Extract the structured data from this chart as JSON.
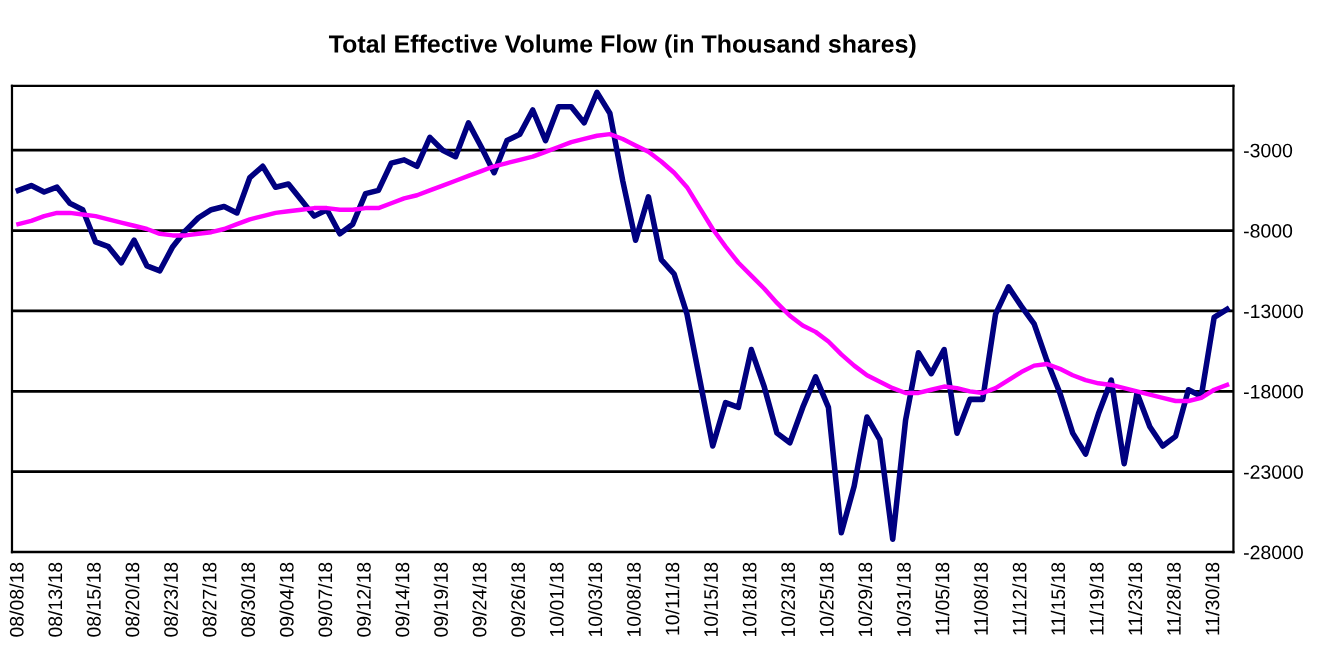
{
  "chart_data": {
    "type": "line",
    "title": "Total Effective Volume Flow (in Thousand shares)",
    "categories": [
      "08/08/18",
      null,
      null,
      "08/13/18",
      null,
      null,
      "08/15/18",
      null,
      null,
      "08/20/18",
      null,
      null,
      "08/23/18",
      null,
      null,
      "08/27/18",
      null,
      null,
      "08/30/18",
      null,
      null,
      "09/04/18",
      null,
      null,
      "09/07/18",
      null,
      null,
      "09/12/18",
      null,
      null,
      "09/14/18",
      null,
      null,
      "09/19/18",
      null,
      null,
      "09/24/18",
      null,
      null,
      "09/26/18",
      null,
      null,
      "10/01/18",
      null,
      null,
      "10/03/18",
      null,
      null,
      "10/08/18",
      null,
      null,
      "10/11/18",
      null,
      null,
      "10/15/18",
      null,
      null,
      "10/18/18",
      null,
      null,
      "10/23/18",
      null,
      null,
      "10/25/18",
      null,
      null,
      "10/29/18",
      null,
      null,
      "10/31/18",
      null,
      null,
      "11/05/18",
      null,
      null,
      "11/08/18",
      null,
      null,
      "11/12/18",
      null,
      null,
      "11/15/18",
      null,
      null,
      "11/19/18",
      null,
      null,
      "11/23/18",
      null,
      null,
      "11/28/18",
      null,
      null,
      "11/30/18",
      null
    ],
    "ylim": [
      -28000,
      1000
    ],
    "yticks": [
      -28000,
      -23000,
      -18000,
      -13000,
      -8000,
      -3000
    ],
    "grid": "y",
    "marker": "none",
    "line_style": "solid",
    "series": [
      {
        "color": "#000080",
        "values": [
          -5500,
          -5200,
          -5600,
          -5300,
          -6300,
          -6700,
          -8700,
          -9000,
          -10000,
          -8600,
          -10200,
          -10500,
          -9000,
          -8000,
          -7200,
          -6700,
          -6500,
          -6900,
          -4700,
          -4000,
          -5300,
          -5100,
          -6100,
          -7100,
          -6700,
          -8200,
          -7600,
          -5700,
          -5500,
          -3800,
          -3600,
          -4000,
          -2200,
          -3000,
          -3400,
          -1300,
          -2800,
          -4400,
          -2400,
          -2000,
          -500,
          -2400,
          -300,
          -300,
          -1300,
          600,
          -700,
          -4900,
          -8600,
          -5900,
          -9800,
          -10700,
          -13200,
          -17300,
          -21400,
          -18700,
          -19000,
          -15400,
          -17700,
          -20600,
          -21200,
          -19000,
          -17100,
          -19000,
          -26800,
          -23900,
          -19600,
          -21000,
          -27200,
          -19800,
          -15600,
          -16900,
          -15400,
          -20600,
          -18500,
          -18500,
          -13200,
          -11500,
          -12700,
          -13800,
          -16100,
          -18100,
          -20600,
          -21900,
          -19400,
          -17300,
          -22500,
          -18100,
          -20200,
          -21400,
          -20800,
          -17900,
          -18300,
          -13400,
          -12900
        ]
      },
      {
        "color": "#ff00ff",
        "values": [
          -7600,
          -7400,
          -7100,
          -6900,
          -6900,
          -7000,
          -7100,
          -7300,
          -7500,
          -7700,
          -7900,
          -8200,
          -8300,
          -8300,
          -8200,
          -8100,
          -7900,
          -7600,
          -7300,
          -7100,
          -6900,
          -6800,
          -6700,
          -6600,
          -6600,
          -6700,
          -6700,
          -6600,
          -6600,
          -6300,
          -6000,
          -5800,
          -5500,
          -5200,
          -4900,
          -4600,
          -4300,
          -4000,
          -3800,
          -3600,
          -3400,
          -3100,
          -2800,
          -2500,
          -2300,
          -2100,
          -2000,
          -2300,
          -2700,
          -3100,
          -3700,
          -4400,
          -5300,
          -6600,
          -7900,
          -9000,
          -10000,
          -10800,
          -11600,
          -12500,
          -13300,
          -13900,
          -14300,
          -14900,
          -15700,
          -16400,
          -17000,
          -17400,
          -17800,
          -18100,
          -18100,
          -17900,
          -17700,
          -17800,
          -18000,
          -18100,
          -17800,
          -17300,
          -16800,
          -16400,
          -16300,
          -16600,
          -17000,
          -17300,
          -17500,
          -17600,
          -17800,
          -18000,
          -18200,
          -18400,
          -18600,
          -18600,
          -18400,
          -17900,
          -17600
        ]
      }
    ]
  }
}
